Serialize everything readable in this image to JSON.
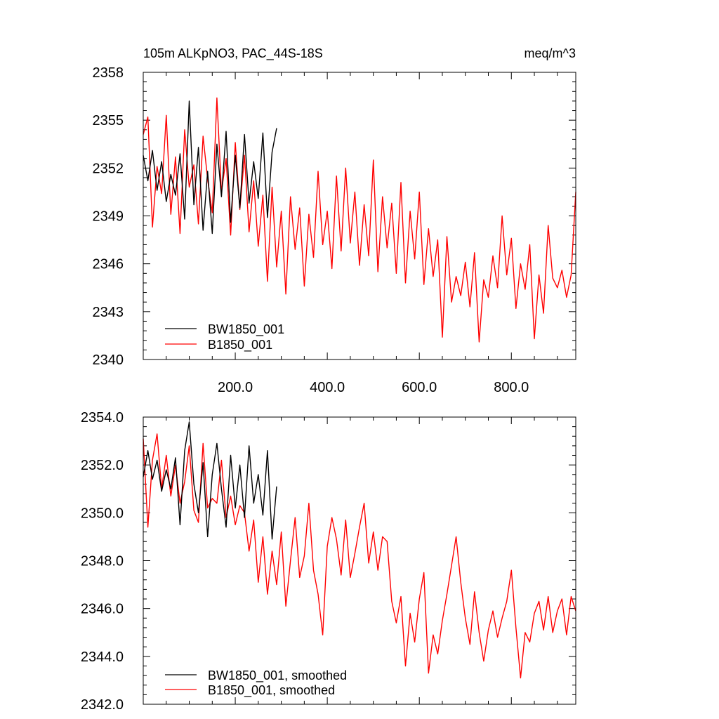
{
  "title_left": "105m ALKpNO3, PAC_44S-18S",
  "title_right": "meq/m^3",
  "colors": {
    "bw": "#000000",
    "b": "#ff0000",
    "frame": "#000000",
    "background": "#ffffff"
  },
  "chart_data": [
    {
      "type": "line",
      "title": "105m ALKpNO3, PAC_44S-18S",
      "units": "meq/m^3",
      "xlim": [
        0,
        940
      ],
      "ylim": [
        2340,
        2358
      ],
      "xticks": [
        200,
        400,
        600,
        800
      ],
      "xtick_labels": [
        "200.0",
        "400.0",
        "600.0",
        "800.0"
      ],
      "yticks": [
        2340,
        2343,
        2346,
        2349,
        2352,
        2355,
        2358
      ],
      "ytick_labels": [
        "2340",
        "2343",
        "2346",
        "2349",
        "2352",
        "2355",
        "2358"
      ],
      "legend": [
        "BW1850_001",
        "B1850_001"
      ],
      "legend_position": "bottom-left",
      "series": [
        {
          "name": "BW1850_001",
          "color": "#000000",
          "x": [
            0,
            10,
            20,
            30,
            40,
            50,
            60,
            70,
            80,
            90,
            100,
            110,
            120,
            130,
            140,
            150,
            160,
            170,
            180,
            190,
            200,
            210,
            220,
            230,
            240,
            250,
            260,
            270,
            280,
            290
          ],
          "y": [
            2352.8,
            2351.2,
            2353.1,
            2350.6,
            2352.4,
            2349.9,
            2351.6,
            2350.3,
            2352.9,
            2348.8,
            2356.2,
            2349.7,
            2353.3,
            2348.1,
            2351.8,
            2347.9,
            2353.5,
            2350.2,
            2354.3,
            2348.6,
            2352.8,
            2349.5,
            2354.1,
            2349.8,
            2352.4,
            2350.1,
            2354.2,
            2348.9,
            2353.0,
            2354.5
          ]
        },
        {
          "name": "B1850_001",
          "color": "#ff0000",
          "x": [
            0,
            10,
            20,
            30,
            40,
            50,
            60,
            70,
            80,
            90,
            100,
            110,
            120,
            130,
            140,
            150,
            160,
            170,
            180,
            190,
            200,
            210,
            220,
            230,
            240,
            250,
            260,
            270,
            280,
            290,
            300,
            310,
            320,
            330,
            340,
            350,
            360,
            370,
            380,
            390,
            400,
            410,
            420,
            430,
            440,
            450,
            460,
            470,
            480,
            490,
            500,
            510,
            520,
            530,
            540,
            550,
            560,
            570,
            580,
            590,
            600,
            610,
            620,
            630,
            640,
            650,
            660,
            670,
            680,
            690,
            700,
            710,
            720,
            730,
            740,
            750,
            760,
            770,
            780,
            790,
            800,
            810,
            820,
            830,
            840,
            850,
            860,
            870,
            880,
            890,
            900,
            910,
            920,
            930,
            940
          ],
          "y": [
            2354.1,
            2355.2,
            2348.3,
            2352.1,
            2350.4,
            2355.3,
            2349.1,
            2352.7,
            2347.9,
            2354.4,
            2350.8,
            2352.2,
            2348.5,
            2354.0,
            2351.3,
            2349.2,
            2356.4,
            2350.5,
            2352.6,
            2347.8,
            2353.6,
            2349.4,
            2352.8,
            2348.0,
            2351.2,
            2347.1,
            2350.3,
            2344.9,
            2350.8,
            2345.8,
            2349.3,
            2344.1,
            2350.2,
            2346.9,
            2349.5,
            2344.6,
            2349.1,
            2346.4,
            2351.8,
            2347.2,
            2349.3,
            2345.7,
            2351.5,
            2346.8,
            2352.0,
            2347.3,
            2350.5,
            2345.9,
            2349.7,
            2346.5,
            2352.5,
            2345.5,
            2350.2,
            2347.0,
            2349.8,
            2345.4,
            2351.1,
            2344.8,
            2349.3,
            2346.3,
            2350.5,
            2344.7,
            2348.2,
            2345.2,
            2347.5,
            2341.4,
            2347.7,
            2343.6,
            2345.2,
            2344.0,
            2346.1,
            2343.3,
            2346.7,
            2341.1,
            2345.0,
            2343.9,
            2346.5,
            2344.5,
            2349.0,
            2345.3,
            2347.6,
            2343.2,
            2346.0,
            2344.4,
            2347.2,
            2341.3,
            2345.3,
            2342.9,
            2348.4,
            2345.1,
            2344.5,
            2345.6,
            2343.9,
            2345.3,
            2350.5
          ]
        }
      ]
    },
    {
      "type": "line",
      "title": "",
      "xlim": [
        0,
        940
      ],
      "ylim": [
        2342,
        2354
      ],
      "yticks": [
        2342,
        2344,
        2346,
        2348,
        2350,
        2352,
        2354
      ],
      "ytick_labels": [
        "2342.0",
        "2344.0",
        "2346.0",
        "2348.0",
        "2350.0",
        "2352.0",
        "2354.0"
      ],
      "legend": [
        "BW1850_001, smoothed",
        "B1850_001, smoothed"
      ],
      "legend_position": "bottom-left",
      "series": [
        {
          "name": "BW1850_001, smoothed",
          "color": "#000000",
          "x": [
            0,
            10,
            20,
            30,
            40,
            50,
            60,
            70,
            80,
            90,
            100,
            110,
            120,
            130,
            140,
            150,
            160,
            170,
            180,
            190,
            200,
            210,
            220,
            230,
            240,
            250,
            260,
            270,
            280,
            290
          ],
          "y": [
            2351.5,
            2352.6,
            2351.4,
            2352.2,
            2350.9,
            2351.8,
            2351.0,
            2352.3,
            2349.5,
            2352.6,
            2353.8,
            2351.2,
            2350.0,
            2352.1,
            2349.0,
            2351.6,
            2352.9,
            2351.0,
            2349.4,
            2352.4,
            2350.2,
            2352.0,
            2349.8,
            2352.8,
            2350.4,
            2351.6,
            2349.9,
            2352.6,
            2348.9,
            2351.1
          ]
        },
        {
          "name": "B1850_001, smoothed",
          "color": "#ff0000",
          "x": [
            0,
            10,
            20,
            30,
            40,
            50,
            60,
            70,
            80,
            90,
            100,
            110,
            120,
            130,
            140,
            150,
            160,
            170,
            180,
            190,
            200,
            210,
            220,
            230,
            240,
            250,
            260,
            270,
            280,
            290,
            300,
            310,
            320,
            330,
            340,
            350,
            360,
            370,
            380,
            390,
            400,
            410,
            420,
            430,
            440,
            450,
            460,
            470,
            480,
            490,
            500,
            510,
            520,
            530,
            540,
            550,
            560,
            570,
            580,
            590,
            600,
            610,
            620,
            630,
            640,
            650,
            660,
            670,
            680,
            690,
            700,
            710,
            720,
            730,
            740,
            750,
            760,
            770,
            780,
            790,
            800,
            810,
            820,
            830,
            840,
            850,
            860,
            870,
            880,
            890,
            900,
            910,
            920,
            930,
            940
          ],
          "y": [
            2353.1,
            2349.4,
            2352.2,
            2353.3,
            2351.0,
            2352.4,
            2350.7,
            2352.0,
            2350.4,
            2351.3,
            2352.8,
            2350.1,
            2349.6,
            2352.9,
            2350.2,
            2350.6,
            2350.4,
            2352.2,
            2349.8,
            2350.7,
            2349.5,
            2350.3,
            2350.0,
            2348.4,
            2349.7,
            2347.1,
            2349.0,
            2346.6,
            2348.4,
            2347.0,
            2349.2,
            2346.1,
            2348.0,
            2349.8,
            2347.3,
            2348.2,
            2350.4,
            2347.6,
            2346.6,
            2344.9,
            2348.6,
            2349.8,
            2348.9,
            2347.4,
            2349.7,
            2347.3,
            2348.3,
            2349.4,
            2350.4,
            2347.9,
            2349.2,
            2347.6,
            2349.0,
            2348.8,
            2346.3,
            2345.4,
            2346.5,
            2343.6,
            2345.8,
            2344.6,
            2346.4,
            2347.5,
            2343.3,
            2344.9,
            2344.1,
            2345.5,
            2346.6,
            2347.8,
            2349.0,
            2347.1,
            2345.6,
            2344.5,
            2346.7,
            2345.0,
            2343.8,
            2345.1,
            2345.9,
            2344.8,
            2345.6,
            2346.3,
            2347.6,
            2345.2,
            2343.1,
            2345.0,
            2344.6,
            2345.8,
            2346.3,
            2345.1,
            2346.5,
            2345.0,
            2345.9,
            2346.4,
            2344.9,
            2346.5,
            2345.9
          ]
        }
      ]
    }
  ]
}
